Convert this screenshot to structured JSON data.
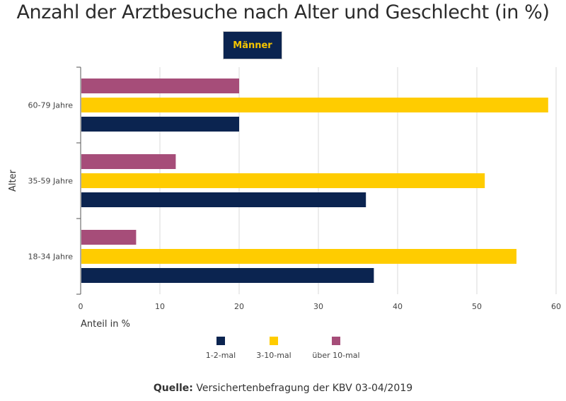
{
  "title": "Anzahl der Arztbesuche nach Alter und Geschlecht (in %)",
  "tab": {
    "label": "Männer",
    "background": "#0b2450",
    "text_color": "#f5c400"
  },
  "source": {
    "label": "Quelle:",
    "text": "Versichertenbefragung der KBV 03-04/2019"
  },
  "chart_data": {
    "type": "bar",
    "orientation": "horizontal",
    "categories": [
      "60-79 Jahre",
      "35-59 Jahre",
      "18-34 Jahre"
    ],
    "series": [
      {
        "name": "über 10-mal",
        "color": "#a64d79",
        "values": [
          20,
          12,
          7
        ]
      },
      {
        "name": "3-10-mal",
        "color": "#ffcc00",
        "values": [
          59,
          51,
          55
        ]
      },
      {
        "name": "1-2-mal",
        "color": "#0b2450",
        "values": [
          20,
          36,
          37
        ]
      }
    ],
    "xlabel": "Anteil in %",
    "ylabel": "Alter",
    "xlim": [
      0,
      60
    ],
    "xticks": [
      "0",
      "10",
      "20",
      "30",
      "40",
      "50",
      "60"
    ],
    "grid": true,
    "legend_placement": "bottom",
    "legend_order": [
      "1-2-mal",
      "3-10-mal",
      "über 10-mal"
    ]
  }
}
